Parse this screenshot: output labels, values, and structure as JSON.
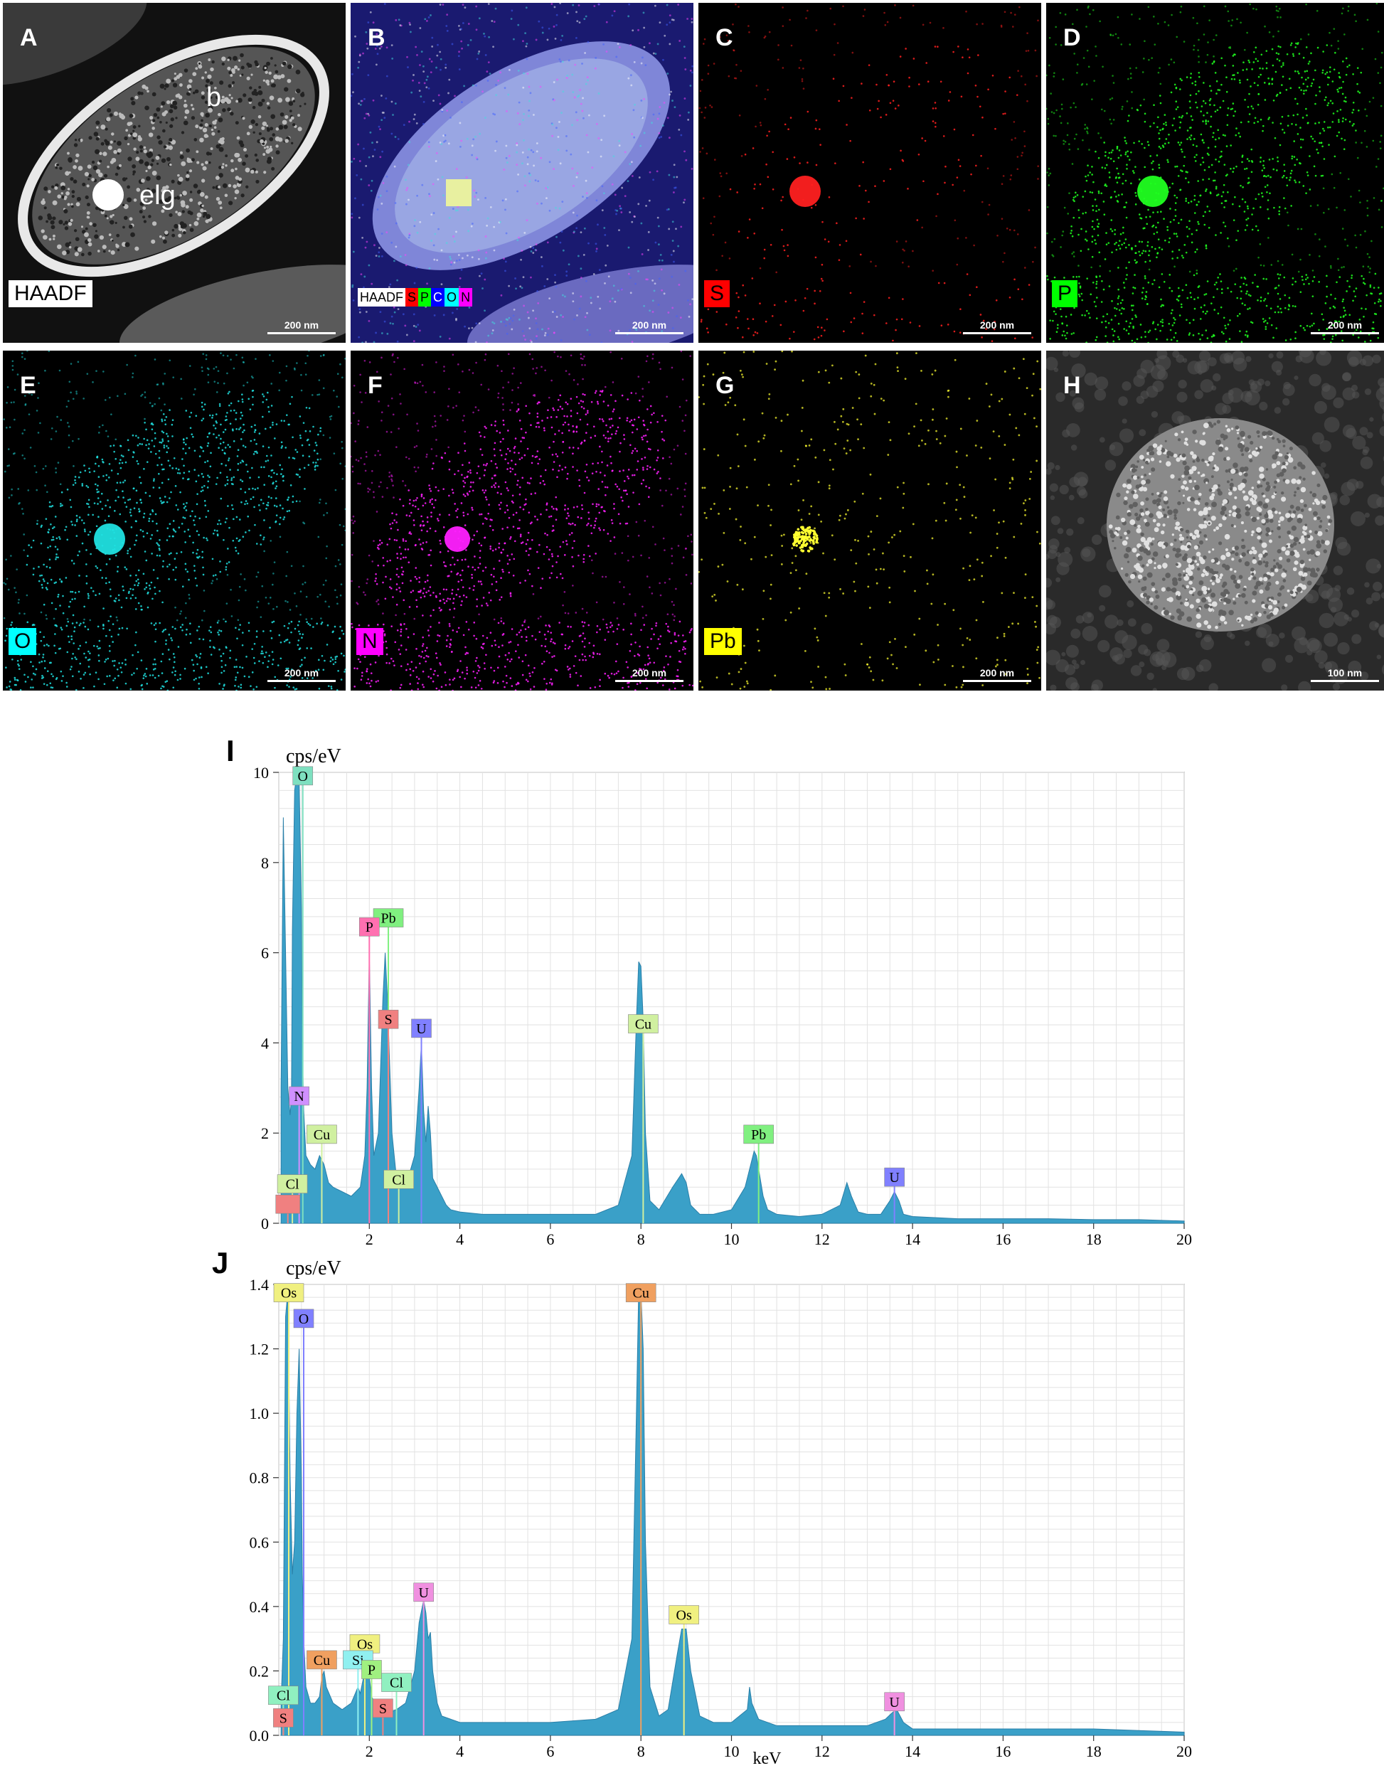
{
  "figure": {
    "panels": [
      {
        "letter": "A",
        "tag": "HAADF",
        "tag_bg": "#ffffff",
        "tag_fg": "#000000",
        "scale": "200 nm",
        "kind": "haadf",
        "color": "#ffffff"
      },
      {
        "letter": "B",
        "tag": "",
        "tag_bg": "",
        "tag_fg": "",
        "scale": "200 nm",
        "kind": "overlay",
        "color": "#8080ff"
      },
      {
        "letter": "C",
        "tag": "S",
        "tag_bg": "#ff0000",
        "tag_fg": "#000000",
        "scale": "200 nm",
        "kind": "map",
        "color": "#ff2020"
      },
      {
        "letter": "D",
        "tag": "P",
        "tag_bg": "#00ff00",
        "tag_fg": "#000000",
        "scale": "200 nm",
        "kind": "map",
        "color": "#20ff20"
      },
      {
        "letter": "E",
        "tag": "O",
        "tag_bg": "#00ffff",
        "tag_fg": "#000000",
        "scale": "200 nm",
        "kind": "map",
        "color": "#20e0e0"
      },
      {
        "letter": "F",
        "tag": "N",
        "tag_bg": "#ff00ff",
        "tag_fg": "#000000",
        "scale": "200 nm",
        "kind": "map",
        "color": "#ff20ff"
      },
      {
        "letter": "G",
        "tag": "Pb",
        "tag_bg": "#ffff00",
        "tag_fg": "#000000",
        "scale": "200 nm",
        "kind": "sparse",
        "color": "#ffff30"
      },
      {
        "letter": "H",
        "tag": "",
        "tag_bg": "",
        "tag_fg": "",
        "scale": "100 nm",
        "kind": "granule",
        "color": "#ffffff"
      }
    ],
    "panel_a_labels": {
      "b": "b",
      "elg": "elg"
    },
    "panel_b_legend": [
      {
        "text": "HAADF",
        "bg": "#ffffff",
        "fg": "#000000"
      },
      {
        "text": "S",
        "bg": "#ff0000",
        "fg": "#000000"
      },
      {
        "text": "P",
        "bg": "#00ff00",
        "fg": "#000000"
      },
      {
        "text": "C",
        "bg": "#0000ff",
        "fg": "#ffffff"
      },
      {
        "text": "O",
        "bg": "#00ffff",
        "fg": "#000000"
      },
      {
        "text": "N",
        "bg": "#ff00ff",
        "fg": "#000000"
      }
    ]
  },
  "chart_data": [
    {
      "panel": "I",
      "type": "line",
      "ylabel": "cps/eV",
      "xlabel": "",
      "xlim": [
        0,
        20
      ],
      "ylim": [
        0,
        10
      ],
      "xticks": [
        2,
        4,
        6,
        8,
        10,
        12,
        14,
        16,
        18,
        20
      ],
      "yticks": [
        0,
        2,
        4,
        6,
        8,
        10
      ],
      "grid": true,
      "fill_color": "#3aa0c8",
      "series": [
        {
          "x": [
            0.05,
            0.1,
            0.15,
            0.2,
            0.25,
            0.28,
            0.3,
            0.35,
            0.4,
            0.45,
            0.5,
            0.52,
            0.55,
            0.6,
            0.7,
            0.8,
            0.9,
            1.0,
            1.1,
            1.2,
            1.4,
            1.6,
            1.8,
            1.9,
            1.95,
            2.0,
            2.05,
            2.1,
            2.2,
            2.3,
            2.35,
            2.4,
            2.45,
            2.5,
            2.6,
            2.8,
            3.0,
            3.1,
            3.15,
            3.2,
            3.25,
            3.3,
            3.35,
            3.4,
            3.5,
            3.6,
            3.7,
            3.8,
            4.0,
            4.5,
            5.0,
            5.5,
            6.0,
            6.5,
            7.0,
            7.5,
            7.8,
            7.9,
            7.95,
            8.0,
            8.05,
            8.1,
            8.2,
            8.4,
            8.7,
            8.9,
            9.0,
            9.1,
            9.3,
            9.6,
            10.0,
            10.3,
            10.5,
            10.55,
            10.6,
            10.7,
            10.8,
            11.0,
            11.5,
            12.0,
            12.4,
            12.55,
            12.65,
            12.8,
            13.0,
            13.3,
            13.5,
            13.6,
            13.7,
            13.8,
            14.0,
            15.0,
            16.0,
            17.0,
            18.0,
            19.0,
            20.0
          ],
          "values": [
            3.0,
            9.0,
            6.0,
            3.0,
            2.4,
            2.8,
            6.5,
            9.6,
            10.0,
            9.8,
            7.0,
            4.0,
            2.5,
            1.5,
            1.3,
            1.2,
            1.5,
            1.3,
            0.9,
            0.8,
            0.7,
            0.6,
            0.8,
            1.5,
            3.0,
            6.0,
            3.0,
            1.5,
            2.0,
            5.0,
            6.0,
            5.0,
            3.5,
            2.0,
            1.0,
            0.8,
            1.5,
            3.0,
            4.0,
            2.5,
            1.8,
            2.6,
            2.0,
            1.0,
            0.8,
            0.6,
            0.4,
            0.3,
            0.25,
            0.2,
            0.2,
            0.2,
            0.2,
            0.2,
            0.2,
            0.4,
            1.5,
            4.5,
            5.8,
            5.7,
            4.5,
            2.0,
            0.5,
            0.3,
            0.8,
            1.1,
            0.9,
            0.4,
            0.2,
            0.2,
            0.3,
            0.8,
            1.6,
            1.5,
            1.2,
            0.6,
            0.3,
            0.2,
            0.15,
            0.2,
            0.4,
            0.9,
            0.6,
            0.25,
            0.2,
            0.2,
            0.5,
            0.7,
            0.5,
            0.2,
            0.15,
            0.1,
            0.1,
            0.1,
            0.08,
            0.08,
            0.05
          ]
        }
      ],
      "peak_labels": [
        {
          "text": "O",
          "x": 0.53,
          "y": 9.75,
          "color": "#7ee0c0"
        },
        {
          "text": "Pb",
          "x": 2.42,
          "y": 6.6,
          "color": "#80f080"
        },
        {
          "text": "P",
          "x": 2.0,
          "y": 6.4,
          "color": "#ff70b0"
        },
        {
          "text": "S",
          "x": 2.42,
          "y": 4.35,
          "color": "#f08080"
        },
        {
          "text": "U",
          "x": 3.15,
          "y": 4.15,
          "color": "#8080ff"
        },
        {
          "text": "Cu",
          "x": 8.05,
          "y": 4.25,
          "color": "#d0f0a0"
        },
        {
          "text": "N",
          "x": 0.45,
          "y": 2.65,
          "color": "#d090ff"
        },
        {
          "text": "Cu",
          "x": 0.95,
          "y": 1.8,
          "color": "#d0f0a0"
        },
        {
          "text": "Pb",
          "x": 10.6,
          "y": 1.8,
          "color": "#80f080"
        },
        {
          "text": "U",
          "x": 13.6,
          "y": 0.85,
          "color": "#8080ff"
        },
        {
          "text": "Cl",
          "x": 0.3,
          "y": 0.7,
          "color": "#d0f0a0"
        },
        {
          "text": "Cl",
          "x": 2.65,
          "y": 0.8,
          "color": "#d0f0a0"
        },
        {
          "text": "",
          "x": 0.2,
          "y": 0.25,
          "color": "#f08080"
        }
      ]
    },
    {
      "panel": "J",
      "type": "line",
      "ylabel": "cps/eV",
      "xlabel": "keV",
      "xlim": [
        0,
        20
      ],
      "ylim": [
        0,
        1.4
      ],
      "xticks": [
        2,
        4,
        6,
        8,
        10,
        12,
        14,
        16,
        18,
        20
      ],
      "yticks": [
        0.0,
        0.2,
        0.4,
        0.6,
        0.8,
        1.0,
        1.2,
        1.4
      ],
      "grid": true,
      "fill_color": "#3aa0c8",
      "series": [
        {
          "x": [
            0.05,
            0.1,
            0.15,
            0.2,
            0.25,
            0.3,
            0.35,
            0.4,
            0.45,
            0.5,
            0.52,
            0.55,
            0.6,
            0.7,
            0.8,
            0.9,
            0.95,
            1.0,
            1.05,
            1.2,
            1.4,
            1.6,
            1.75,
            1.8,
            1.9,
            2.0,
            2.05,
            2.2,
            2.4,
            2.6,
            2.8,
            3.0,
            3.1,
            3.2,
            3.25,
            3.3,
            3.35,
            3.4,
            3.5,
            3.6,
            3.8,
            4.0,
            5.0,
            6.0,
            7.0,
            7.5,
            7.8,
            7.9,
            7.95,
            8.0,
            8.05,
            8.1,
            8.2,
            8.4,
            8.6,
            8.8,
            8.9,
            9.0,
            9.1,
            9.3,
            9.6,
            10.0,
            10.35,
            10.4,
            10.45,
            10.6,
            11.0,
            12.0,
            13.0,
            13.4,
            13.55,
            13.65,
            13.8,
            14.0,
            15.0,
            16.0,
            17.0,
            18.0,
            19.0,
            20.0
          ],
          "values": [
            0.1,
            0.3,
            1.3,
            1.38,
            0.8,
            0.5,
            0.6,
            1.0,
            1.2,
            0.8,
            0.5,
            0.3,
            0.15,
            0.1,
            0.1,
            0.12,
            0.18,
            0.2,
            0.15,
            0.1,
            0.08,
            0.1,
            0.15,
            0.13,
            0.2,
            0.18,
            0.12,
            0.08,
            0.07,
            0.08,
            0.1,
            0.2,
            0.35,
            0.42,
            0.38,
            0.3,
            0.32,
            0.2,
            0.1,
            0.06,
            0.05,
            0.04,
            0.04,
            0.04,
            0.05,
            0.08,
            0.3,
            1.0,
            1.38,
            1.38,
            1.2,
            0.6,
            0.15,
            0.06,
            0.08,
            0.25,
            0.33,
            0.33,
            0.2,
            0.06,
            0.04,
            0.04,
            0.08,
            0.15,
            0.1,
            0.05,
            0.03,
            0.03,
            0.03,
            0.05,
            0.07,
            0.08,
            0.04,
            0.02,
            0.02,
            0.02,
            0.02,
            0.02,
            0.015,
            0.01
          ]
        }
      ],
      "peak_labels": [
        {
          "text": "Os",
          "x": 0.22,
          "y": 1.35,
          "color": "#f0f080"
        },
        {
          "text": "O",
          "x": 0.55,
          "y": 1.27,
          "color": "#8080ff"
        },
        {
          "text": "Cu",
          "x": 8.0,
          "y": 1.35,
          "color": "#f0a060"
        },
        {
          "text": "U",
          "x": 3.2,
          "y": 0.42,
          "color": "#f090e0"
        },
        {
          "text": "Os",
          "x": 8.95,
          "y": 0.35,
          "color": "#f0f080"
        },
        {
          "text": "Os",
          "x": 1.9,
          "y": 0.26,
          "color": "#f0f080"
        },
        {
          "text": "Cu",
          "x": 0.95,
          "y": 0.21,
          "color": "#f0a060"
        },
        {
          "text": "Si",
          "x": 1.75,
          "y": 0.21,
          "color": "#90f0f0"
        },
        {
          "text": "P",
          "x": 2.05,
          "y": 0.18,
          "color": "#a0f080"
        },
        {
          "text": "Cl",
          "x": 2.6,
          "y": 0.14,
          "color": "#90f0c0"
        },
        {
          "text": "Cl",
          "x": 0.1,
          "y": 0.1,
          "color": "#90f0c0"
        },
        {
          "text": "S",
          "x": 0.1,
          "y": 0.03,
          "color": "#f08080"
        },
        {
          "text": "S",
          "x": 2.3,
          "y": 0.06,
          "color": "#f08080"
        },
        {
          "text": "U",
          "x": 13.6,
          "y": 0.08,
          "color": "#f090e0"
        }
      ]
    }
  ]
}
